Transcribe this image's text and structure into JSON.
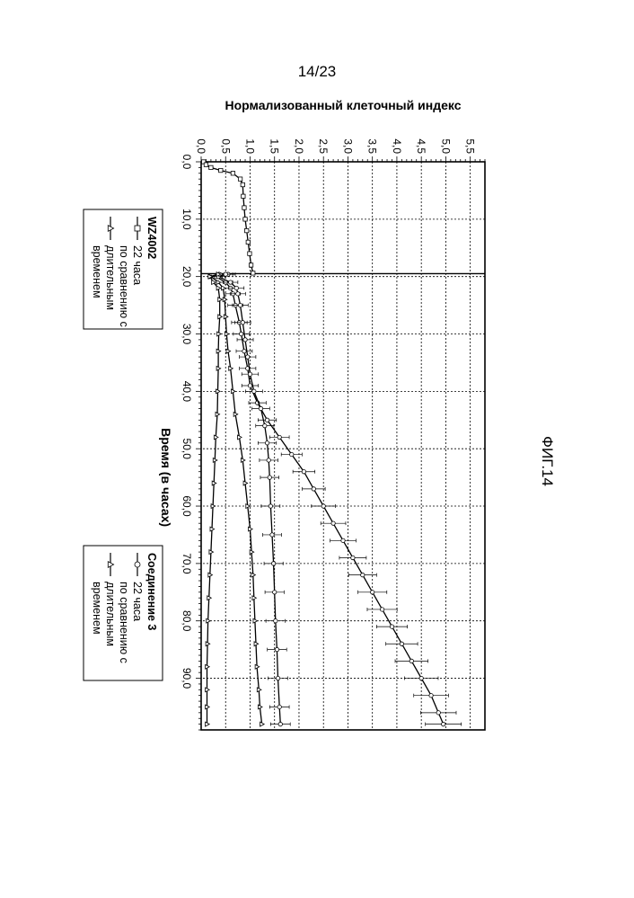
{
  "page": {
    "number": "14/23"
  },
  "figure_label": "ФИГ.14",
  "chart_data": {
    "type": "line",
    "xlabel": "Время (в часах)",
    "ylabel": "Нормализованный клеточный индекс",
    "xlim": [
      0,
      99
    ],
    "ylim": [
      0,
      5.8
    ],
    "grid": true,
    "x_ticks": [
      "0,0",
      "10,0",
      "20,0",
      "30,0",
      "40,0",
      "50,0",
      "60,0",
      "70,0",
      "80,0",
      "90,0"
    ],
    "y_ticks": [
      "0,0",
      "0,5",
      "1,0",
      "1,5",
      "2,0",
      "2,5",
      "3,0",
      "3,5",
      "4,0",
      "4,5",
      "5,0",
      "5,5"
    ],
    "legends": [
      {
        "title": "WZ4002",
        "entries": [
          {
            "label": "22 часа"
          },
          {
            "label": "по сравнению с"
          },
          {
            "label": "длительным"
          },
          {
            "label": "временем"
          }
        ]
      },
      {
        "title": "Соединение 3",
        "entries": [
          {
            "label": "22 часа"
          },
          {
            "label": "по сравнению с"
          },
          {
            "label": "длительным"
          },
          {
            "label": "временем"
          }
        ]
      }
    ],
    "series": [
      {
        "marker": "square",
        "error_bars": false,
        "points": [
          [
            0,
            0.05
          ],
          [
            0.5,
            0.1
          ],
          [
            1,
            0.2
          ],
          [
            1.5,
            0.4
          ],
          [
            2,
            0.65
          ],
          [
            3,
            0.8
          ],
          [
            4,
            0.85
          ],
          [
            6,
            0.86
          ],
          [
            8,
            0.88
          ],
          [
            10,
            0.9
          ],
          [
            12,
            0.93
          ],
          [
            14,
            0.96
          ],
          [
            16,
            0.99
          ],
          [
            18,
            1.02
          ],
          [
            19.4,
            1.06
          ]
        ]
      },
      {
        "marker": "circle",
        "error_bars": true,
        "points": [
          [
            19.6,
            0.55
          ],
          [
            20,
            0.3
          ],
          [
            21,
            0.5
          ],
          [
            22,
            0.6
          ],
          [
            23,
            0.65
          ],
          [
            25,
            0.7
          ],
          [
            28,
            0.78
          ],
          [
            30,
            0.82
          ],
          [
            33,
            0.88
          ],
          [
            36,
            0.95
          ],
          [
            39,
            1.0
          ],
          [
            42,
            1.15
          ],
          [
            45,
            1.35
          ],
          [
            48,
            1.6
          ],
          [
            51,
            1.85
          ],
          [
            54,
            2.1
          ],
          [
            57,
            2.3
          ],
          [
            60,
            2.5
          ],
          [
            63,
            2.7
          ],
          [
            66,
            2.9
          ],
          [
            69,
            3.1
          ],
          [
            72,
            3.3
          ],
          [
            75,
            3.5
          ],
          [
            78,
            3.7
          ],
          [
            81,
            3.9
          ],
          [
            84,
            4.1
          ],
          [
            87,
            4.3
          ],
          [
            90,
            4.5
          ],
          [
            93,
            4.7
          ],
          [
            96,
            4.85
          ],
          [
            98,
            4.95
          ]
        ]
      },
      {
        "marker": "circle",
        "error_bars": true,
        "points": [
          [
            19.6,
            0.5
          ],
          [
            20,
            0.35
          ],
          [
            21,
            0.6
          ],
          [
            22,
            0.72
          ],
          [
            23,
            0.75
          ],
          [
            25,
            0.8
          ],
          [
            28,
            0.85
          ],
          [
            31,
            0.9
          ],
          [
            34,
            0.95
          ],
          [
            37,
            1.0
          ],
          [
            40,
            1.08
          ],
          [
            43,
            1.22
          ],
          [
            46,
            1.3
          ],
          [
            49,
            1.35
          ],
          [
            52,
            1.38
          ],
          [
            55,
            1.4
          ],
          [
            60,
            1.42
          ],
          [
            65,
            1.45
          ],
          [
            70,
            1.48
          ],
          [
            75,
            1.5
          ],
          [
            80,
            1.52
          ],
          [
            85,
            1.55
          ],
          [
            90,
            1.57
          ],
          [
            95,
            1.6
          ],
          [
            98,
            1.62
          ]
        ]
      },
      {
        "marker": "triangle",
        "error_bars": false,
        "points": [
          [
            19.6,
            0.4
          ],
          [
            20,
            0.2
          ],
          [
            21,
            0.35
          ],
          [
            22,
            0.45
          ],
          [
            24,
            0.48
          ],
          [
            27,
            0.5
          ],
          [
            30,
            0.52
          ],
          [
            33,
            0.55
          ],
          [
            36,
            0.6
          ],
          [
            40,
            0.65
          ],
          [
            44,
            0.7
          ],
          [
            48,
            0.78
          ],
          [
            52,
            0.85
          ],
          [
            56,
            0.9
          ],
          [
            60,
            0.95
          ],
          [
            64,
            1.0
          ],
          [
            68,
            1.03
          ],
          [
            72,
            1.06
          ],
          [
            76,
            1.08
          ],
          [
            80,
            1.1
          ],
          [
            84,
            1.12
          ],
          [
            88,
            1.14
          ],
          [
            92,
            1.18
          ],
          [
            95,
            1.2
          ],
          [
            98,
            1.24
          ]
        ]
      },
      {
        "marker": "triangle",
        "error_bars": false,
        "points": [
          [
            19.6,
            0.35
          ],
          [
            20,
            0.18
          ],
          [
            21,
            0.25
          ],
          [
            22,
            0.35
          ],
          [
            24,
            0.38
          ],
          [
            27,
            0.38
          ],
          [
            30,
            0.36
          ],
          [
            33,
            0.35
          ],
          [
            36,
            0.35
          ],
          [
            40,
            0.34
          ],
          [
            44,
            0.33
          ],
          [
            48,
            0.3
          ],
          [
            52,
            0.28
          ],
          [
            56,
            0.26
          ],
          [
            60,
            0.24
          ],
          [
            64,
            0.22
          ],
          [
            68,
            0.2
          ],
          [
            72,
            0.18
          ],
          [
            76,
            0.16
          ],
          [
            80,
            0.14
          ],
          [
            84,
            0.13
          ],
          [
            88,
            0.12
          ],
          [
            92,
            0.12
          ],
          [
            95,
            0.12
          ],
          [
            98,
            0.12
          ]
        ]
      }
    ],
    "vertical_line_x": 19.5
  }
}
